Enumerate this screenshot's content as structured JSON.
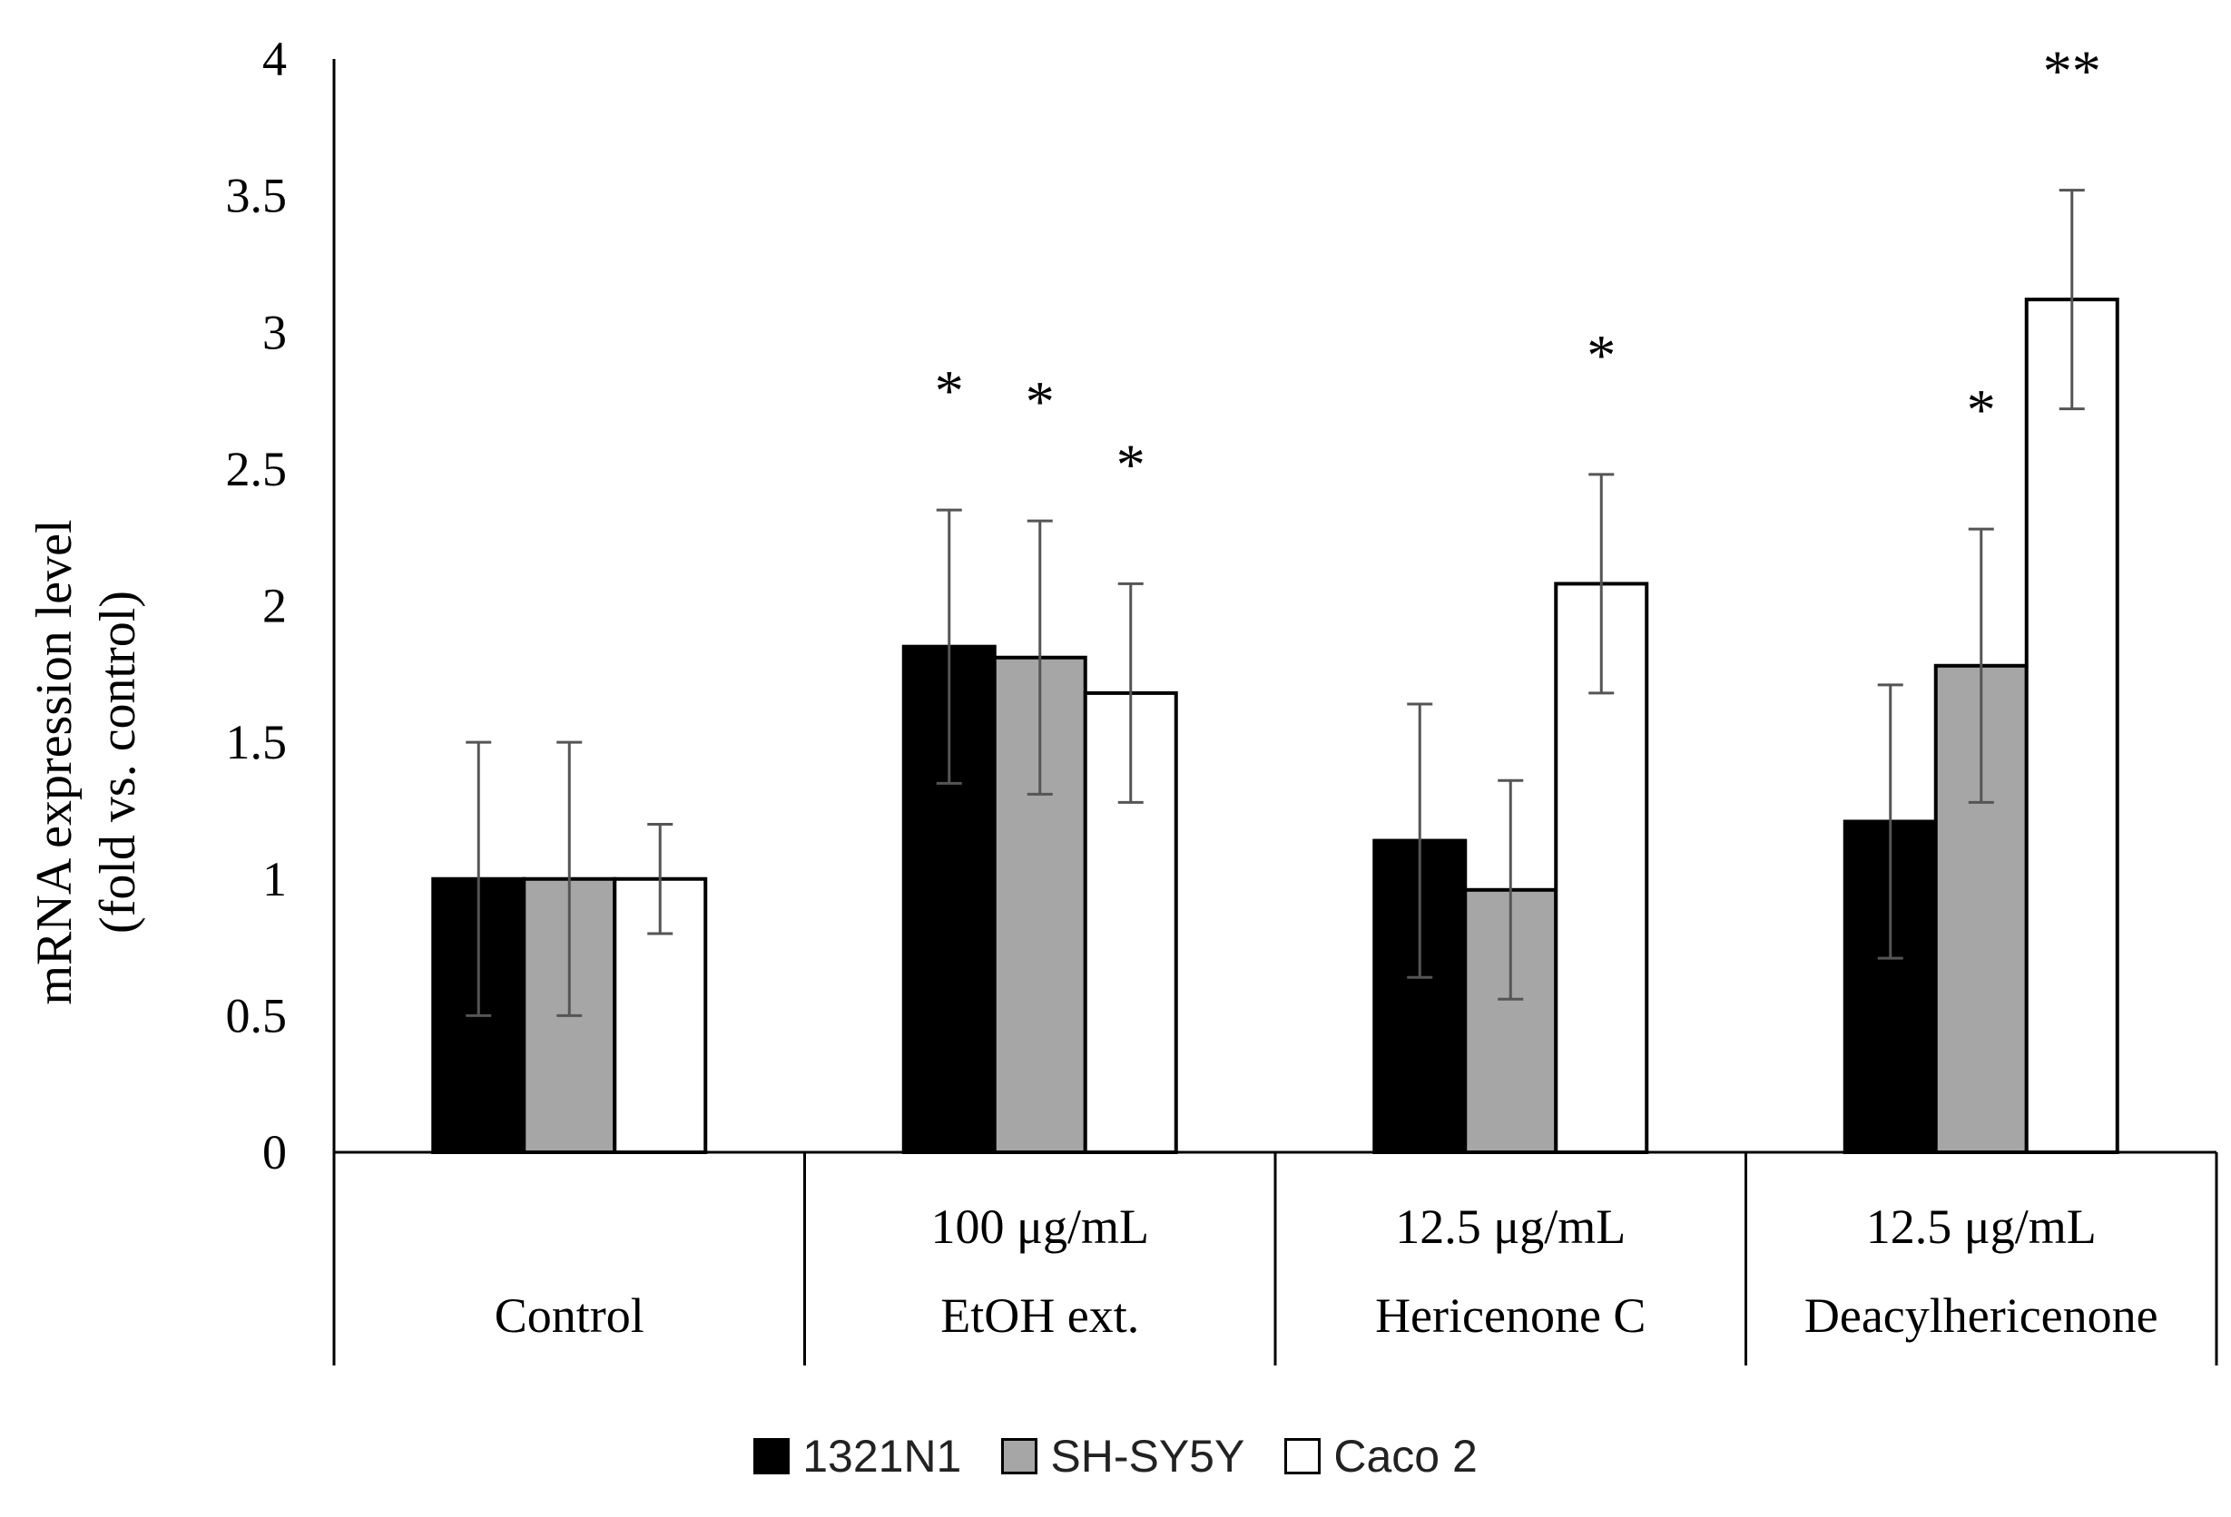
{
  "chart_data": {
    "type": "bar",
    "title": "",
    "xlabel": "",
    "ylabel": [
      "mRNA expression level",
      "(fold vs. control)"
    ],
    "ylim": [
      0,
      4
    ],
    "yticks": [
      0,
      0.5,
      1,
      1.5,
      2,
      2.5,
      3,
      3.5,
      4
    ],
    "ytick_labels": [
      "0",
      "0.5",
      "1",
      "1.5",
      "2",
      "2.5",
      "3",
      "3.5",
      "4"
    ],
    "categories": [
      {
        "concentration": "",
        "name": "Control"
      },
      {
        "concentration": "100 μg/mL",
        "name": "EtOH ext."
      },
      {
        "concentration": "12.5 μg/mL",
        "name": "Hericenone C"
      },
      {
        "concentration": "12.5 μg/mL",
        "name": "Deacylhericenone"
      }
    ],
    "series": [
      {
        "name": "1321N1",
        "color": "#000000",
        "values": [
          1.0,
          1.85,
          1.14,
          1.21
        ],
        "errors": [
          0.5,
          0.5,
          0.5,
          0.5
        ],
        "significance": [
          "",
          "*",
          "",
          ""
        ]
      },
      {
        "name": "SH-SY5Y",
        "color": "#a6a6a6",
        "values": [
          1.0,
          1.81,
          0.96,
          1.78
        ],
        "errors": [
          0.5,
          0.5,
          0.4,
          0.5
        ],
        "significance": [
          "",
          "*",
          "",
          "*"
        ]
      },
      {
        "name": "Caco 2",
        "color": "#ffffff",
        "values": [
          1.0,
          1.68,
          2.08,
          3.12
        ],
        "errors": [
          0.2,
          0.4,
          0.4,
          0.4
        ],
        "significance": [
          "",
          "*",
          "*",
          "**"
        ]
      }
    ],
    "legend_position": "bottom-center"
  }
}
